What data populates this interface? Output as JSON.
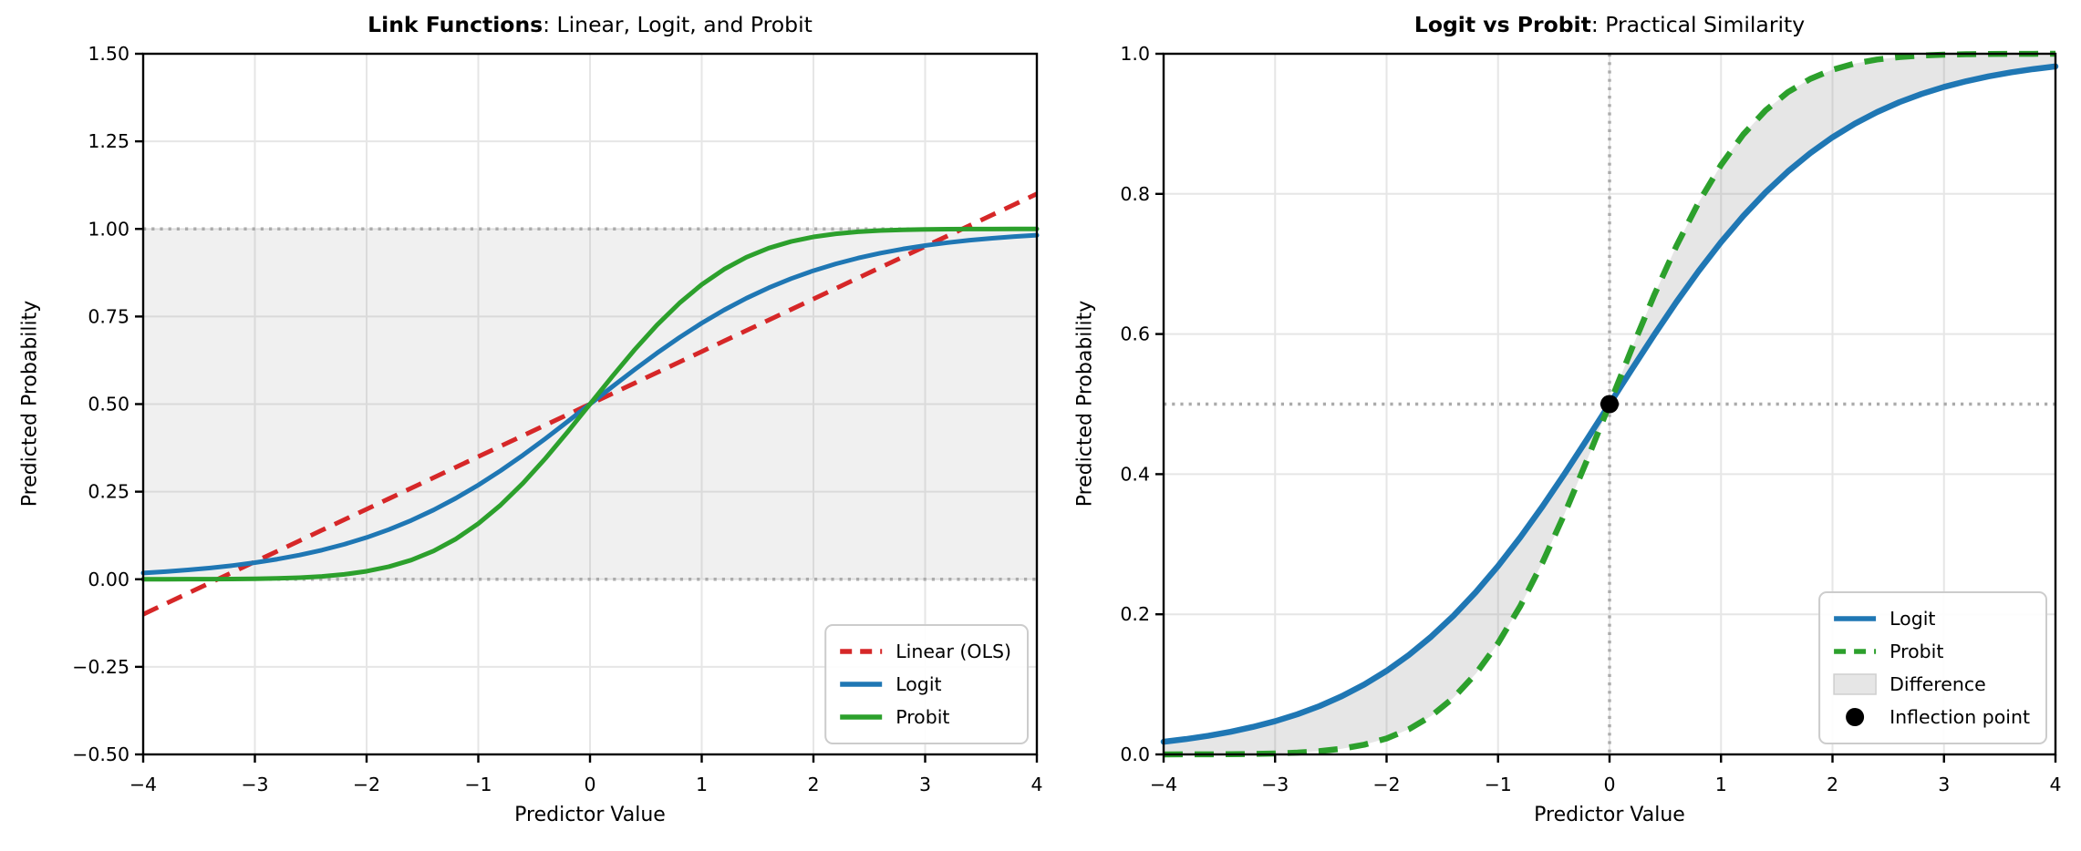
{
  "colors": {
    "linear_red": "#d62728",
    "logit_blue": "#1f77b4",
    "probit_green": "#2ca02c",
    "grid": "#e6e6e6",
    "band_fill": "rgba(128,128,128,0.12)",
    "diff_fill": "rgba(128,128,128,0.20)",
    "ref_line": "#ababab",
    "marker_black": "#000000",
    "legend_border": "#cccccc",
    "legend_patch_fill": "#e6e6e6",
    "legend_patch_border": "#cfcfcf",
    "axis": "#000000",
    "background": "#ffffff"
  },
  "chart_data": [
    {
      "id": "left",
      "type": "line",
      "title_bold": "Link Functions",
      "title_rest": ": Linear, Logit, and Probit",
      "xlabel": "Predictor Value",
      "ylabel": "Predicted Probability",
      "xlim": [
        -4,
        4
      ],
      "ylim": [
        -0.5,
        1.5
      ],
      "grid": true,
      "xticks": [
        {
          "v": -4,
          "label": "−4"
        },
        {
          "v": -3,
          "label": "−3"
        },
        {
          "v": -2,
          "label": "−2"
        },
        {
          "v": -1,
          "label": "−1"
        },
        {
          "v": 0,
          "label": "0"
        },
        {
          "v": 1,
          "label": "1"
        },
        {
          "v": 2,
          "label": "2"
        },
        {
          "v": 3,
          "label": "3"
        },
        {
          "v": 4,
          "label": "4"
        }
      ],
      "yticks": [
        {
          "v": 1.5,
          "label": "1.50"
        },
        {
          "v": 1.25,
          "label": "1.25"
        },
        {
          "v": 1.0,
          "label": "1.00"
        },
        {
          "v": 0.75,
          "label": "0.75"
        },
        {
          "v": 0.5,
          "label": "0.50"
        },
        {
          "v": 0.25,
          "label": "0.25"
        },
        {
          "v": 0.0,
          "label": "0.00"
        },
        {
          "v": -0.25,
          "label": "−0.25"
        },
        {
          "v": -0.5,
          "label": "−0.50"
        }
      ],
      "band": {
        "ymin": 0,
        "ymax": 1
      },
      "ref_lines": [
        {
          "orient": "h",
          "v": 0
        },
        {
          "orient": "h",
          "v": 1
        }
      ],
      "x": [
        -4,
        -3.8,
        -3.6,
        -3.4,
        -3.2,
        -3,
        -2.8,
        -2.6,
        -2.4,
        -2.2,
        -2,
        -1.8,
        -1.6,
        -1.4,
        -1.2,
        -1,
        -0.8,
        -0.6,
        -0.4,
        -0.2,
        0,
        0.2,
        0.4,
        0.6,
        0.8,
        1,
        1.2,
        1.4,
        1.6,
        1.8,
        2,
        2.2,
        2.4,
        2.6,
        2.8,
        3,
        3.2,
        3.4,
        3.6,
        3.8,
        4
      ],
      "series": [
        {
          "name": "Linear (OLS)",
          "color": "#d62728",
          "style": "dashed",
          "width": 5,
          "values": [
            -0.1,
            -0.07,
            -0.04,
            -0.01,
            0.02,
            0.05,
            0.08,
            0.11,
            0.14,
            0.17,
            0.2,
            0.23,
            0.26,
            0.29,
            0.32,
            0.35,
            0.38,
            0.41,
            0.44,
            0.47,
            0.5,
            0.53,
            0.56,
            0.59,
            0.62,
            0.65,
            0.68,
            0.71,
            0.74,
            0.77,
            0.8,
            0.83,
            0.86,
            0.89,
            0.92,
            0.95,
            0.98,
            1.01,
            1.04,
            1.07,
            1.1
          ]
        },
        {
          "name": "Logit",
          "color": "#1f77b4",
          "style": "solid",
          "width": 5,
          "values": [
            0.018,
            0.0219,
            0.0266,
            0.0323,
            0.0392,
            0.0474,
            0.0573,
            0.0691,
            0.0832,
            0.0998,
            0.1192,
            0.1419,
            0.168,
            0.1978,
            0.2315,
            0.2689,
            0.31,
            0.3543,
            0.4013,
            0.4502,
            0.5,
            0.5498,
            0.5987,
            0.6457,
            0.69,
            0.7311,
            0.7685,
            0.8022,
            0.832,
            0.8581,
            0.8808,
            0.9002,
            0.9168,
            0.9309,
            0.9427,
            0.9526,
            0.9608,
            0.9677,
            0.9734,
            0.9781,
            0.982
          ]
        },
        {
          "name": "Probit",
          "color": "#2ca02c",
          "style": "solid",
          "width": 5,
          "values": [
            0.0,
            0.0001,
            0.0002,
            0.0003,
            0.0007,
            0.0013,
            0.0026,
            0.0047,
            0.0082,
            0.0139,
            0.0228,
            0.0359,
            0.0548,
            0.0808,
            0.1151,
            0.1587,
            0.2119,
            0.2743,
            0.3446,
            0.4207,
            0.5,
            0.5793,
            0.6554,
            0.7257,
            0.7881,
            0.8413,
            0.8849,
            0.9192,
            0.9452,
            0.9641,
            0.9772,
            0.9861,
            0.9918,
            0.9953,
            0.9974,
            0.9987,
            0.9993,
            0.9997,
            0.9998,
            0.9999,
            1.0
          ]
        }
      ],
      "legend": {
        "position": "lower-right",
        "entries": [
          {
            "label": "Linear (OLS)",
            "type": "line",
            "style": "dashed",
            "color": "#d62728"
          },
          {
            "label": "Logit",
            "type": "line",
            "style": "solid",
            "color": "#1f77b4"
          },
          {
            "label": "Probit",
            "type": "line",
            "style": "solid",
            "color": "#2ca02c"
          }
        ]
      }
    },
    {
      "id": "right",
      "type": "line",
      "title_bold": "Logit vs Probit",
      "title_rest": ": Practical Similarity",
      "xlabel": "Predictor Value",
      "ylabel": "Predicted Probability",
      "xlim": [
        -4,
        4
      ],
      "ylim": [
        0,
        1
      ],
      "grid": true,
      "xticks": [
        {
          "v": -4,
          "label": "−4"
        },
        {
          "v": -3,
          "label": "−3"
        },
        {
          "v": -2,
          "label": "−2"
        },
        {
          "v": -1,
          "label": "−1"
        },
        {
          "v": 0,
          "label": "0"
        },
        {
          "v": 1,
          "label": "1"
        },
        {
          "v": 2,
          "label": "2"
        },
        {
          "v": 3,
          "label": "3"
        },
        {
          "v": 4,
          "label": "4"
        }
      ],
      "yticks": [
        {
          "v": 1.0,
          "label": "1.0"
        },
        {
          "v": 0.8,
          "label": "0.8"
        },
        {
          "v": 0.6,
          "label": "0.6"
        },
        {
          "v": 0.4,
          "label": "0.4"
        },
        {
          "v": 0.2,
          "label": "0.2"
        },
        {
          "v": 0.0,
          "label": "0.0"
        }
      ],
      "ref_lines": [
        {
          "orient": "h",
          "v": 0.5
        },
        {
          "orient": "v",
          "v": 0
        }
      ],
      "x": [
        -4,
        -3.8,
        -3.6,
        -3.4,
        -3.2,
        -3,
        -2.8,
        -2.6,
        -2.4,
        -2.2,
        -2,
        -1.8,
        -1.6,
        -1.4,
        -1.2,
        -1,
        -0.8,
        -0.6,
        -0.4,
        -0.2,
        0,
        0.2,
        0.4,
        0.6,
        0.8,
        1,
        1.2,
        1.4,
        1.6,
        1.8,
        2,
        2.2,
        2.4,
        2.6,
        2.8,
        3,
        3.2,
        3.4,
        3.6,
        3.8,
        4
      ],
      "series": [
        {
          "name": "Logit",
          "color": "#1f77b4",
          "style": "solid",
          "width": 6.5,
          "values": [
            0.018,
            0.0219,
            0.0266,
            0.0323,
            0.0392,
            0.0474,
            0.0573,
            0.0691,
            0.0832,
            0.0998,
            0.1192,
            0.1419,
            0.168,
            0.1978,
            0.2315,
            0.2689,
            0.31,
            0.3543,
            0.4013,
            0.4502,
            0.5,
            0.5498,
            0.5987,
            0.6457,
            0.69,
            0.7311,
            0.7685,
            0.8022,
            0.832,
            0.8581,
            0.8808,
            0.9002,
            0.9168,
            0.9309,
            0.9427,
            0.9526,
            0.9608,
            0.9677,
            0.9734,
            0.9781,
            0.982
          ]
        },
        {
          "name": "Probit",
          "color": "#2ca02c",
          "style": "dashed",
          "width": 6.5,
          "values": [
            0.0,
            0.0001,
            0.0002,
            0.0003,
            0.0007,
            0.0013,
            0.0026,
            0.0047,
            0.0082,
            0.0139,
            0.0228,
            0.0359,
            0.0548,
            0.0808,
            0.1151,
            0.1587,
            0.2119,
            0.2743,
            0.3446,
            0.4207,
            0.5,
            0.5793,
            0.6554,
            0.7257,
            0.7881,
            0.8413,
            0.8849,
            0.9192,
            0.9452,
            0.9641,
            0.9772,
            0.9861,
            0.9918,
            0.9953,
            0.9974,
            0.9987,
            0.9993,
            0.9997,
            0.9998,
            0.9999,
            1.0
          ]
        }
      ],
      "fill_between": {
        "upper_series": 1,
        "lower_series": 0,
        "label": "Difference"
      },
      "points": [
        {
          "x": 0,
          "y": 0.5,
          "label": "Inflection point",
          "color": "#000000",
          "radius": 10
        }
      ],
      "legend": {
        "position": "lower-right",
        "entries": [
          {
            "label": "Logit",
            "type": "line",
            "style": "solid",
            "color": "#1f77b4"
          },
          {
            "label": "Probit",
            "type": "line",
            "style": "dashed",
            "color": "#2ca02c"
          },
          {
            "label": "Difference",
            "type": "patch",
            "color": "#e6e6e6"
          },
          {
            "label": "Inflection point",
            "type": "dot",
            "color": "#000000"
          }
        ]
      }
    }
  ]
}
